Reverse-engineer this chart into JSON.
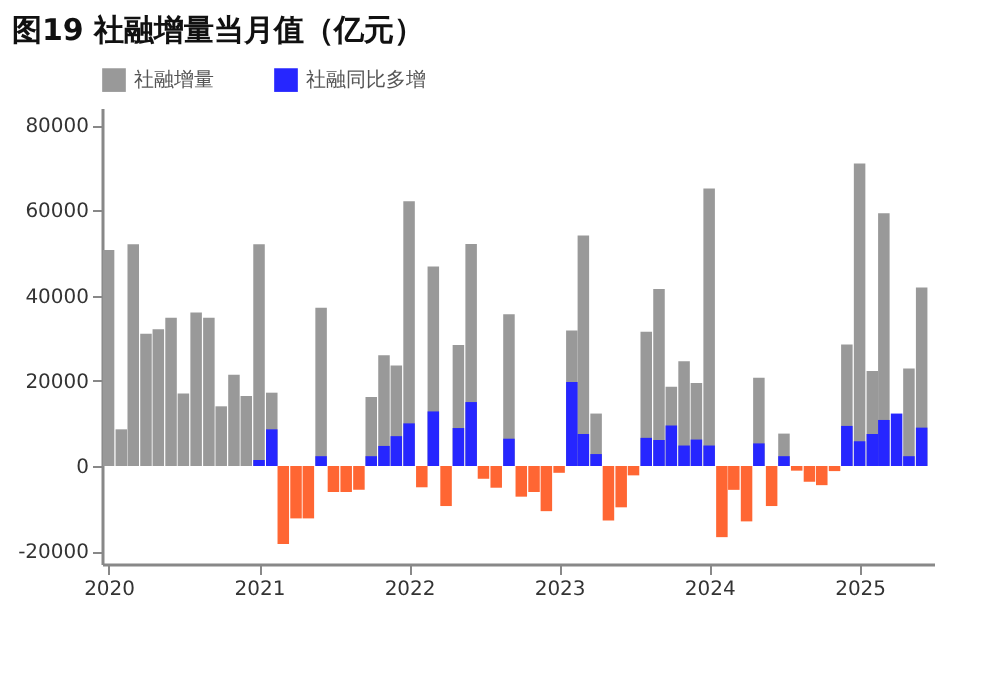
{
  "chart_data": {
    "type": "bar",
    "title": "图19 社融增量当月值（亿元）",
    "x": [
      "2020-01",
      "2020-02",
      "2020-03",
      "2020-04",
      "2020-05",
      "2020-06",
      "2020-07",
      "2020-08",
      "2020-09",
      "2020-10",
      "2020-11",
      "2020-12",
      "2021-01",
      "2021-02",
      "2021-03",
      "2021-04",
      "2021-05",
      "2021-06",
      "2021-07",
      "2021-08",
      "2021-09",
      "2021-10",
      "2021-11",
      "2021-12",
      "2022-01",
      "2022-02",
      "2022-03",
      "2022-04",
      "2022-05",
      "2022-06",
      "2022-07",
      "2022-08",
      "2022-09",
      "2022-10",
      "2022-11",
      "2022-12",
      "2023-01",
      "2023-02",
      "2023-03",
      "2023-04",
      "2023-05",
      "2023-06",
      "2023-07",
      "2023-08",
      "2023-09",
      "2023-10",
      "2023-11",
      "2023-12",
      "2024-01",
      "2024-02",
      "2024-03",
      "2024-04",
      "2024-05",
      "2024-06",
      "2024-07",
      "2024-08",
      "2024-09",
      "2024-10",
      "2024-11",
      "2024-12",
      "2025-01",
      "2025-02",
      "2025-03",
      "2025-04",
      "2025-05",
      "2025-06"
    ],
    "series": [
      {
        "name": "社融增量",
        "color": "#999999",
        "values": [
          50700,
          8600,
          52000,
          31000,
          32100,
          34800,
          17000,
          36000,
          34800,
          14000,
          21400,
          16400,
          52000,
          17200,
          null,
          null,
          null,
          37100,
          null,
          null,
          null,
          16200,
          26000,
          23600,
          62100,
          null,
          46800,
          null,
          28400,
          52100,
          null,
          null,
          35600,
          null,
          null,
          null,
          null,
          31800,
          54100,
          12300,
          null,
          null,
          null,
          31500,
          41500,
          18600,
          24600,
          19500,
          65100,
          null,
          null,
          null,
          20700,
          null,
          7600,
          null,
          null,
          null,
          null,
          28500,
          71000,
          22300,
          59300,
          null,
          22900,
          41900
        ]
      },
      {
        "name": "社融同比多增",
        "color": "#2626ff",
        "colors": [
          "#2626ff",
          "#2626ff",
          "#2626ff",
          "#2626ff",
          "#2626ff",
          "#2626ff",
          "#2626ff",
          "#2626ff",
          "#2626ff",
          "#2626ff",
          "#2626ff",
          "#2626ff",
          "#2626ff",
          "#2626ff",
          "#ff6633",
          "#ff6633",
          "#ff6633",
          "#2626ff",
          "#ff6633",
          "#ff6633",
          "#ff6633",
          "#2626ff",
          "#2626ff",
          "#2626ff",
          "#2626ff",
          "#ff6633",
          "#2626ff",
          "#ff6633",
          "#2626ff",
          "#2626ff",
          "#ff6633",
          "#ff6633",
          "#2626ff",
          "#ff6633",
          "#ff6633",
          "#ff6633",
          "#ff6633",
          "#2626ff",
          "#2626ff",
          "#2626ff",
          "#ff6633",
          "#ff6633",
          "#ff6633",
          "#2626ff",
          "#2626ff",
          "#2626ff",
          "#2626ff",
          "#2626ff",
          "#2626ff",
          "#ff6633",
          "#ff6633",
          "#ff6633",
          "#2626ff",
          "#ff6633",
          "#2626ff",
          "#ff6633",
          "#ff6633",
          "#ff6633",
          "#ff6633",
          "#2626ff",
          "#2626ff",
          "#2626ff",
          "#2626ff",
          "#2626ff",
          "#2626ff",
          "#2626ff"
        ],
        "values": [
          null,
          null,
          null,
          null,
          null,
          null,
          null,
          null,
          null,
          null,
          null,
          null,
          1400,
          8600,
          -18300,
          -12300,
          -12300,
          2300,
          -6100,
          -6100,
          -5600,
          2300,
          4700,
          7000,
          10000,
          -5000,
          12800,
          -9400,
          8900,
          15000,
          -3000,
          -5100,
          6400,
          -7200,
          -6100,
          -10600,
          -1600,
          19700,
          7500,
          2800,
          -12800,
          -9700,
          -2200,
          6600,
          6100,
          9500,
          4800,
          6200,
          4800,
          -16700,
          -5600,
          -13000,
          5300,
          -9400,
          2300,
          -1100,
          -3700,
          -4500,
          -1200,
          9400,
          5800,
          7500,
          10800,
          12300,
          2300,
          9000
        ]
      }
    ],
    "xlim": [
      "2019-12-16",
      "2025-07-01"
    ],
    "xticks": [
      "2020",
      "2021",
      "2022",
      "2023",
      "2024",
      "2025"
    ],
    "ylim": [
      -23000,
      84000
    ],
    "yticks": [
      -20000,
      0,
      20000,
      40000,
      60000,
      80000
    ],
    "grid": false,
    "legend": "top"
  }
}
